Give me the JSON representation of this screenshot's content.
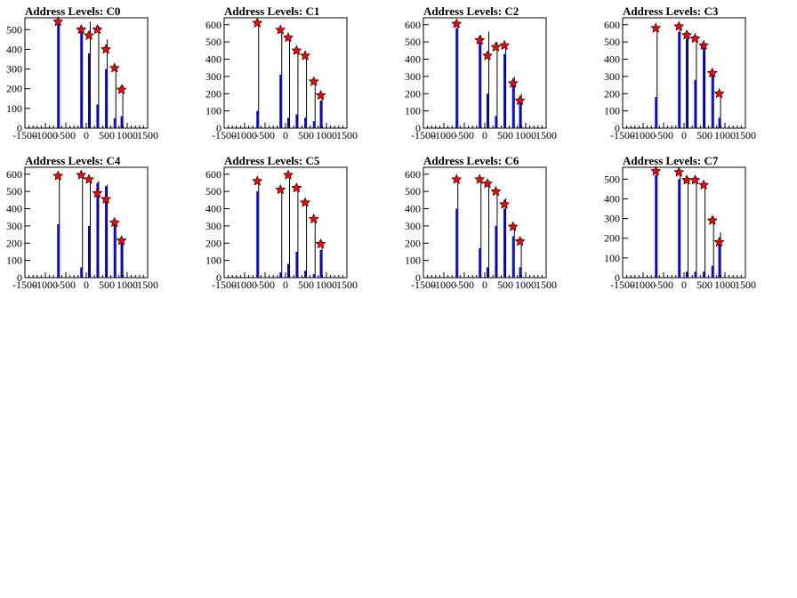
{
  "page": {
    "background": "#ffffff"
  },
  "style": {
    "bar_color": "#0000ff",
    "spike_color": "#000000",
    "marker_color": "#ff0000",
    "marker_shape": "star-icon"
  },
  "chart_data": [
    {
      "type": "bar",
      "title": "Address Levels: C0",
      "xlim": [
        -1500,
        1500
      ],
      "ylim": [
        0,
        560
      ],
      "xticks": [
        -1500,
        -1000,
        -500,
        0,
        500,
        1000,
        1500
      ],
      "yticks": [
        0,
        100,
        200,
        300,
        400,
        500
      ],
      "ytick_labels": [
        "0",
        "100",
        "200",
        "300",
        "400",
        "500"
      ],
      "x": [
        -690,
        -125,
        65,
        270,
        480,
        690,
        860
      ],
      "values": [
        540,
        500,
        380,
        120,
        300,
        50,
        60
      ],
      "spikes": [
        540,
        510,
        540,
        520,
        450,
        300,
        220
      ],
      "peaks_x": [
        -690,
        -125,
        65,
        270,
        480,
        690,
        860
      ],
      "peaks_y": [
        540,
        500,
        470,
        500,
        400,
        305,
        195
      ]
    },
    {
      "type": "bar",
      "title": "Address Levels: C1",
      "xlim": [
        -1500,
        1500
      ],
      "ylim": [
        0,
        640
      ],
      "xticks": [
        -1500,
        -1000,
        -500,
        0,
        500,
        1000,
        1500
      ],
      "yticks": [
        0,
        100,
        200,
        300,
        400,
        500,
        600
      ],
      "ytick_labels": [
        "0",
        "100",
        "200",
        "300",
        "400",
        "500",
        "600"
      ],
      "x": [
        -690,
        -125,
        65,
        270,
        480,
        690,
        860
      ],
      "values": [
        100,
        310,
        60,
        80,
        60,
        40,
        160
      ],
      "spikes": [
        610,
        570,
        530,
        450,
        420,
        270,
        190
      ],
      "peaks_x": [
        -690,
        -125,
        65,
        270,
        480,
        690,
        860
      ],
      "peaks_y": [
        610,
        570,
        525,
        450,
        420,
        270,
        190
      ]
    },
    {
      "type": "bar",
      "title": "Address Levels: C2",
      "xlim": [
        -1500,
        1500
      ],
      "ylim": [
        0,
        640
      ],
      "xticks": [
        -1500,
        -1000,
        -500,
        0,
        500,
        1000,
        1500
      ],
      "yticks": [
        0,
        100,
        200,
        300,
        400,
        500,
        600
      ],
      "ytick_labels": [
        "0",
        "100",
        "200",
        "300",
        "400",
        "500",
        "600"
      ],
      "x": [
        -690,
        -125,
        65,
        270,
        480,
        690,
        860
      ],
      "values": [
        580,
        500,
        200,
        70,
        430,
        250,
        150
      ],
      "spikes": [
        610,
        540,
        560,
        500,
        480,
        300,
        200
      ],
      "peaks_x": [
        -690,
        -125,
        65,
        270,
        480,
        690,
        860
      ],
      "peaks_y": [
        605,
        510,
        420,
        470,
        480,
        260,
        160
      ]
    },
    {
      "type": "bar",
      "title": "Address Levels: C3",
      "xlim": [
        -1500,
        1500
      ],
      "ylim": [
        0,
        640
      ],
      "xticks": [
        -1500,
        -1000,
        -500,
        0,
        500,
        1000,
        1500
      ],
      "yticks": [
        0,
        100,
        200,
        300,
        400,
        500,
        600
      ],
      "ytick_labels": [
        "0",
        "100",
        "200",
        "300",
        "400",
        "500",
        "600"
      ],
      "x": [
        -690,
        -125,
        65,
        270,
        480,
        690,
        860
      ],
      "values": [
        180,
        560,
        520,
        280,
        480,
        320,
        60
      ],
      "spikes": [
        590,
        600,
        560,
        530,
        490,
        330,
        200
      ],
      "peaks_x": [
        -690,
        -125,
        65,
        270,
        480,
        690,
        860
      ],
      "peaks_y": [
        580,
        590,
        540,
        520,
        480,
        320,
        200
      ]
    },
    {
      "type": "bar",
      "title": "Address Levels: C4",
      "xlim": [
        -1500,
        1500
      ],
      "ylim": [
        0,
        640
      ],
      "xticks": [
        -1500,
        -1000,
        -500,
        0,
        500,
        1000,
        1500
      ],
      "yticks": [
        0,
        100,
        200,
        300,
        400,
        500,
        600
      ],
      "ytick_labels": [
        "0",
        "100",
        "200",
        "300",
        "400",
        "500",
        "600"
      ],
      "x": [
        -690,
        -125,
        65,
        270,
        480,
        690,
        860
      ],
      "values": [
        310,
        60,
        300,
        550,
        530,
        320,
        200
      ],
      "spikes": [
        590,
        600,
        580,
        560,
        540,
        330,
        220
      ],
      "peaks_x": [
        -690,
        -125,
        65,
        270,
        480,
        690,
        860
      ],
      "peaks_y": [
        590,
        595,
        570,
        490,
        455,
        320,
        215
      ]
    },
    {
      "type": "bar",
      "title": "Address Levels: C5",
      "xlim": [
        -1500,
        1500
      ],
      "ylim": [
        0,
        640
      ],
      "xticks": [
        -1500,
        -1000,
        -500,
        0,
        500,
        1000,
        1500
      ],
      "yticks": [
        0,
        100,
        200,
        300,
        400,
        500,
        600
      ],
      "ytick_labels": [
        "0",
        "100",
        "200",
        "300",
        "400",
        "500",
        "600"
      ],
      "x": [
        -690,
        -125,
        65,
        270,
        480,
        690,
        860
      ],
      "values": [
        500,
        30,
        80,
        150,
        40,
        20,
        160
      ],
      "spikes": [
        570,
        520,
        600,
        530,
        440,
        350,
        210
      ],
      "peaks_x": [
        -690,
        -125,
        65,
        270,
        480,
        690,
        860
      ],
      "peaks_y": [
        560,
        510,
        595,
        520,
        435,
        340,
        195
      ]
    },
    {
      "type": "bar",
      "title": "Address Levels: C6",
      "xlim": [
        -1500,
        1500
      ],
      "ylim": [
        0,
        640
      ],
      "xticks": [
        -1500,
        -1000,
        -500,
        0,
        500,
        1000,
        1500
      ],
      "yticks": [
        0,
        100,
        200,
        300,
        400,
        500,
        600
      ],
      "ytick_labels": [
        "0",
        "100",
        "200",
        "300",
        "400",
        "500",
        "600"
      ],
      "x": [
        -690,
        -125,
        65,
        270,
        480,
        690,
        860
      ],
      "values": [
        400,
        170,
        60,
        300,
        400,
        240,
        60
      ],
      "spikes": [
        580,
        580,
        560,
        510,
        460,
        310,
        230
      ],
      "peaks_x": [
        -690,
        -125,
        65,
        270,
        480,
        690,
        860
      ],
      "peaks_y": [
        570,
        570,
        545,
        500,
        425,
        295,
        210
      ]
    },
    {
      "type": "bar",
      "title": "Address Levels: C7",
      "xlim": [
        -1500,
        1500
      ],
      "ylim": [
        0,
        560
      ],
      "xticks": [
        -1500,
        -1000,
        -500,
        0,
        500,
        1000,
        1500
      ],
      "yticks": [
        0,
        100,
        200,
        300,
        400,
        500
      ],
      "ytick_labels": [
        "0",
        "100",
        "200",
        "300",
        "400",
        "500"
      ],
      "x": [
        -690,
        -125,
        65,
        270,
        480,
        690,
        860
      ],
      "values": [
        520,
        500,
        30,
        30,
        30,
        60,
        180
      ],
      "spikes": [
        550,
        540,
        510,
        510,
        480,
        310,
        230
      ],
      "peaks_x": [
        -690,
        -125,
        65,
        270,
        480,
        690,
        860
      ],
      "peaks_y": [
        540,
        535,
        495,
        495,
        470,
        290,
        180
      ]
    }
  ]
}
